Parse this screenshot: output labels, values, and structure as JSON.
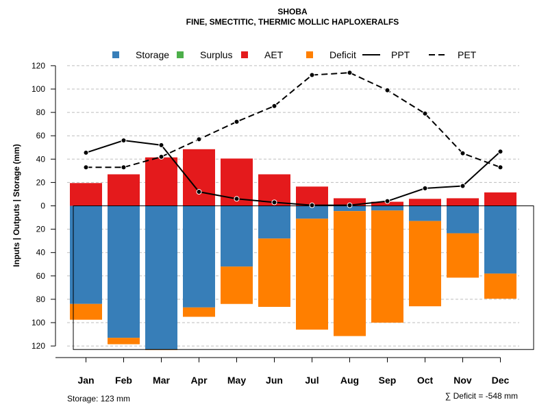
{
  "chart_data": {
    "type": "bar",
    "title": "SHOBA",
    "subtitle": "FINE, SMECTITIC, THERMIC MOLLIC HAPLOXERALFS",
    "ylabel": "Inputs | Outputs | Storage    (mm)",
    "xlabel": "",
    "categories": [
      "Jan",
      "Feb",
      "Mar",
      "Apr",
      "May",
      "Jun",
      "Jul",
      "Aug",
      "Sep",
      "Oct",
      "Nov",
      "Dec"
    ],
    "ylim": [
      -123,
      120
    ],
    "yticks": [
      120,
      100,
      80,
      60,
      40,
      20,
      0,
      -20,
      -40,
      -60,
      -80,
      -100,
      -120
    ],
    "ytick_labels": [
      "120",
      "100",
      "80",
      "60",
      "40",
      "20",
      "0",
      "20",
      "40",
      "60",
      "80",
      "100",
      "120"
    ],
    "grid": true,
    "legend_position": "top",
    "legend": [
      {
        "name": "Storage",
        "kind": "box",
        "color": "#377EB8"
      },
      {
        "name": "Surplus",
        "kind": "box",
        "color": "#4DAF4A"
      },
      {
        "name": "AET",
        "kind": "box",
        "color": "#E41A1C"
      },
      {
        "name": "Deficit",
        "kind": "box",
        "color": "#FF7F00"
      },
      {
        "name": "PPT",
        "kind": "solid",
        "color": "#000000"
      },
      {
        "name": "PET",
        "kind": "dashed",
        "color": "#000000"
      }
    ],
    "series": [
      {
        "name": "AET",
        "color": "#E41A1C",
        "values": [
          19.5,
          27,
          41.5,
          48.5,
          40.5,
          27,
          16.5,
          6.5,
          3.5,
          6,
          6.5,
          11.5
        ]
      },
      {
        "name": "Storage",
        "color": "#377EB8",
        "values": [
          -84,
          -113,
          -123,
          -87,
          -52,
          -28,
          -11,
          -4.5,
          -4,
          -13,
          -23.5,
          -58
        ]
      },
      {
        "name": "Deficit",
        "color": "#FF7F00",
        "values": [
          -13.5,
          -5.5,
          -0.5,
          -8,
          -32,
          -58.5,
          -95,
          -107,
          -96,
          -73,
          -38,
          -21.5
        ]
      },
      {
        "name": "Surplus",
        "color": "#4DAF4A",
        "values": [
          0,
          0,
          0,
          0,
          0,
          0,
          0,
          0,
          0,
          0,
          0,
          0
        ]
      },
      {
        "name": "PPT",
        "color": "#000000",
        "values": [
          45.5,
          56,
          52,
          12,
          6,
          3,
          0.5,
          0.5,
          4,
          15,
          17,
          46.5
        ]
      },
      {
        "name": "PET",
        "color": "#000000",
        "values": [
          33,
          33,
          42,
          57,
          72,
          85.5,
          112,
          114,
          99,
          79,
          45,
          33
        ]
      }
    ],
    "annotations": {
      "storage_text": "Storage: 123 mm",
      "deficit_text": "∑ Deficit = -548 mm"
    }
  }
}
